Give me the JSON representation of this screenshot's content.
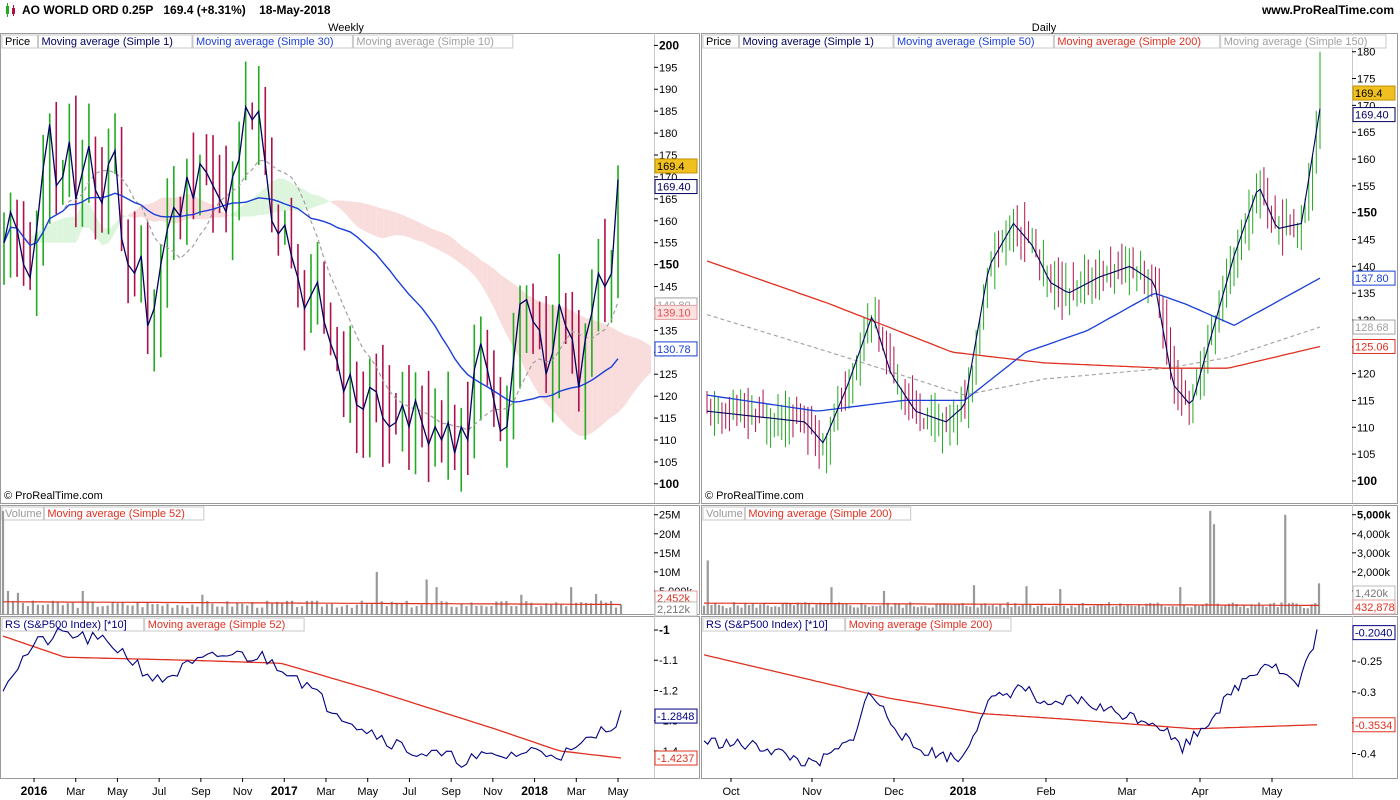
{
  "header": {
    "instrument": "AO WORLD ORD 0.25P",
    "quote": "169.4 (+8.31%)",
    "date": "18-May-2018",
    "site": "www.ProRealTime.com"
  },
  "watermark": "© ProRealTime.com",
  "colors": {
    "up": "#22aa22",
    "down": "#b0104a",
    "price_line": "#000060",
    "ma_fast_blue": "#1a3fd8",
    "ma_slow_red": "#e03020",
    "ma_grey": "#a0a0a0",
    "volume_bar": "#999999",
    "rs_line": "#000080",
    "cloud_red": "#f8d8d8",
    "cloud_green": "#d8f4d8",
    "last_price_bg": "#f0c020"
  },
  "chart_data": [
    {
      "id": "weekly-price",
      "type": "line",
      "title": "Weekly",
      "legend": [
        "Price",
        "Moving average (Simple 1)",
        "Moving average (Simple 30)",
        "Moving average (Simple 10)"
      ],
      "ylim": [
        97,
        201
      ],
      "yticks": [
        100,
        105,
        110,
        115,
        120,
        125,
        130,
        135,
        140,
        145,
        150,
        155,
        160,
        165,
        170,
        175,
        180,
        185,
        190,
        195,
        200
      ],
      "major_yticks": [
        100,
        150,
        200
      ],
      "x_labels": [
        "2016",
        "Mar",
        "May",
        "Jul",
        "Sep",
        "Nov",
        "2017",
        "Mar",
        "May",
        "Jul",
        "Sep",
        "Nov",
        "2018",
        "Mar",
        "May"
      ],
      "bold_x_labels": [
        "2016",
        "2017",
        "2018"
      ],
      "close": [
        155,
        162,
        158,
        150,
        147,
        158,
        172,
        182,
        168,
        170,
        178,
        165,
        171,
        177,
        167,
        164,
        173,
        176,
        156,
        150,
        148,
        152,
        136,
        140,
        150,
        158,
        163,
        161,
        170,
        165,
        173,
        171,
        168,
        165,
        162,
        170,
        174,
        186,
        183,
        185,
        173,
        160,
        157,
        159,
        152,
        147,
        140,
        143,
        146,
        137,
        132,
        128,
        121,
        125,
        118,
        117,
        122,
        121,
        115,
        113,
        114,
        118,
        113,
        119,
        114,
        109,
        113,
        110,
        114,
        107,
        113,
        110,
        126,
        132,
        126,
        119,
        112,
        113,
        128,
        141,
        142,
        137,
        135,
        125,
        130,
        141,
        136,
        133,
        122,
        133,
        139,
        148,
        145,
        148,
        169.4
      ],
      "series_last": {
        "Moving average (Simple 1)": 169.4,
        "Moving average (Simple 30)": 130.78,
        "Moving average (Simple 10)": 140.8,
        "cloud": 139.1
      },
      "last_price_label": "169.4",
      "right_labels": [
        "169.4",
        "169.40",
        "140.80",
        "139.10",
        "130.78"
      ]
    },
    {
      "id": "daily-price",
      "type": "line",
      "title": "Daily",
      "legend": [
        "Price",
        "Moving average (Simple 1)",
        "Moving average (Simple 50)",
        "Moving average (Simple 200)",
        "Moving average (Simple 150)"
      ],
      "ylim": [
        97,
        182
      ],
      "yticks": [
        100,
        105,
        110,
        115,
        120,
        125,
        130,
        135,
        140,
        145,
        150,
        155,
        160,
        165,
        170,
        175,
        180
      ],
      "major_yticks": [
        100,
        150
      ],
      "x_labels": [
        "Oct",
        "Nov",
        "Dec",
        "2018",
        "Feb",
        "Mar",
        "Apr",
        "May"
      ],
      "bold_x_labels": [
        "2018"
      ],
      "ma_start": {
        "Moving average (Simple 50)": 116.0,
        "Moving average (Simple 200)": 141.0,
        "Moving average (Simple 150)": 131.0
      },
      "series_last": {
        "Moving average (Simple 1)": 169.4,
        "Moving average (Simple 50)": 137.8,
        "Moving average (Simple 200)": 125.06,
        "Moving average (Simple 150)": 128.68
      },
      "last_price_label": "169.4",
      "right_labels": [
        "169.4",
        "169.40",
        "137.80",
        "128.68",
        "125.06"
      ]
    },
    {
      "id": "weekly-volume",
      "type": "bar",
      "legend": [
        "Volume",
        "Moving average (Simple 52)"
      ],
      "ytick_labels": [
        "25M",
        "20M",
        "15M",
        "10M",
        "5,000k"
      ],
      "yticks": [
        25,
        20,
        15,
        10,
        5
      ],
      "unit": "M",
      "right_labels": [
        "2,452k",
        "2,212k"
      ]
    },
    {
      "id": "daily-volume",
      "type": "bar",
      "legend": [
        "Volume",
        "Moving average (Simple 200)"
      ],
      "ytick_labels": [
        "5,000k",
        "4,000k",
        "3,000k",
        "2,000k",
        "1,000k"
      ],
      "yticks": [
        5000,
        4000,
        3000,
        2000,
        1000
      ],
      "unit": "k",
      "right_labels": [
        "1,420k",
        "432,878"
      ]
    },
    {
      "id": "weekly-rs",
      "type": "line",
      "legend": [
        "RS (S&P500 Index) [*10]",
        "Moving average (Simple 52)"
      ],
      "ylim": [
        -1.47,
        -0.98
      ],
      "yticks": [
        -1,
        -1.1,
        -1.2,
        -1.3,
        -1.4
      ],
      "ytick_labels": [
        "-1",
        "-1.1",
        "-1.2",
        "-1.3",
        "-1.4"
      ],
      "series_last": {
        "RS (S&P500 Index) [*10]": -1.2848,
        "Moving average (Simple 52)": -1.4237
      },
      "right_labels": [
        "-1.2848",
        "-1.4237"
      ]
    },
    {
      "id": "daily-rs",
      "type": "line",
      "legend": [
        "RS (S&P500 Index) [*10]",
        "Moving average (Simple 200)"
      ],
      "ylim": [
        -0.43,
        -0.19
      ],
      "yticks": [
        -0.25,
        -0.3,
        -0.35,
        -0.4
      ],
      "ytick_labels": [
        "-0.25",
        "-0.3",
        "",
        "-0.4"
      ],
      "series_last": {
        "RS (S&P500 Index) [*10]": -0.204,
        "Moving average (Simple 200)": -0.3534
      },
      "right_labels": [
        "-0.2040",
        "-0.3534"
      ]
    }
  ]
}
